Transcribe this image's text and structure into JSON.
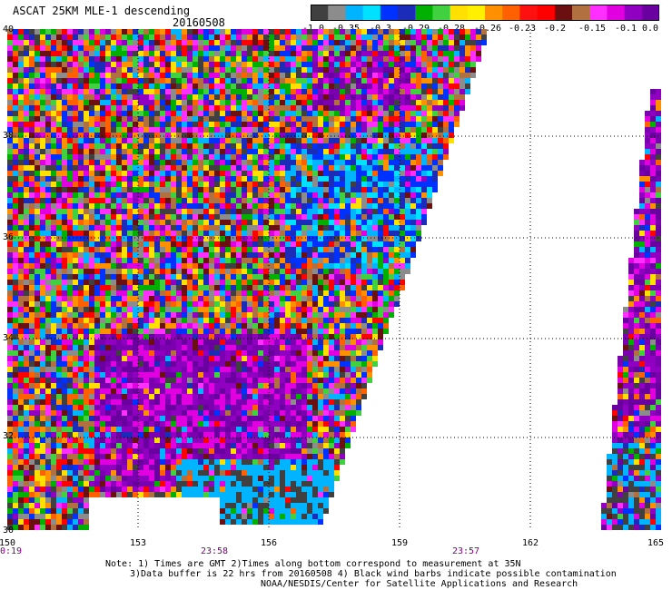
{
  "header": {
    "title": "ASCAT 25KM MLE-1 descending",
    "date": "20160508"
  },
  "colorbar": {
    "colors": [
      "#404040",
      "#8c8c8c",
      "#00b4ff",
      "#00e0ff",
      "#0032ff",
      "#1a2cb8",
      "#00b000",
      "#40d040",
      "#ffe000",
      "#fff000",
      "#ff9000",
      "#ff6000",
      "#ff1010",
      "#ff0000",
      "#6a1010",
      "#b07040",
      "#ff30ff",
      "#e000e0",
      "#9000c0",
      "#6a00a0"
    ],
    "labels": [
      "-1.0",
      "-0.35",
      "-0.3",
      "-0.29",
      "-0.28",
      "-0.26",
      "-0.23",
      "-0.2",
      "-0.15",
      "-0.1",
      "0.0"
    ]
  },
  "axes": {
    "lon_labels": [
      "150",
      "153",
      "156",
      "159",
      "162",
      "165"
    ],
    "lat_labels": [
      "40",
      "38",
      "36",
      "34",
      "32",
      "30"
    ]
  },
  "times": [
    "0:19",
    "23:58",
    "23:57"
  ],
  "notes": {
    "line1": "Note: 1) Times are GMT 2)Times along bottom correspond to measurement at 35N",
    "line2": "3)Data buffer is 22 hrs from 20160508 4) Black wind barbs indicate possible contamination",
    "line3": "NOAA/NESDIS/Center for Satellite Applications and Research"
  }
}
